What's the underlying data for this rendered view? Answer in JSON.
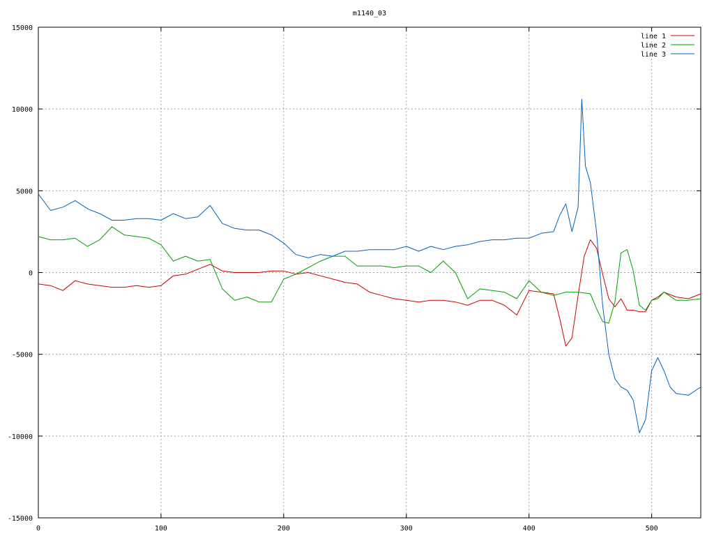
{
  "chart_data": {
    "type": "line",
    "title": "m1140_03",
    "xlabel": "",
    "ylabel": "",
    "xlim": [
      0,
      540
    ],
    "ylim": [
      -15000,
      15000
    ],
    "x_ticks": [
      0,
      100,
      200,
      300,
      400,
      500
    ],
    "y_ticks": [
      -15000,
      -10000,
      -5000,
      0,
      5000,
      10000,
      15000
    ],
    "grid": true,
    "legend_position": "top-right",
    "series": [
      {
        "name": "line 1",
        "color": "#cc0000",
        "x": [
          0,
          10,
          20,
          30,
          40,
          50,
          60,
          70,
          80,
          90,
          100,
          110,
          120,
          130,
          140,
          150,
          160,
          170,
          180,
          190,
          200,
          210,
          220,
          230,
          240,
          250,
          260,
          270,
          280,
          290,
          300,
          310,
          320,
          330,
          340,
          350,
          360,
          370,
          380,
          390,
          400,
          410,
          420,
          425,
          430,
          435,
          440,
          445,
          450,
          455,
          460,
          465,
          470,
          475,
          480,
          485,
          490,
          495,
          500,
          505,
          510,
          520,
          530,
          540
        ],
        "y": [
          -700,
          -800,
          -1100,
          -500,
          -700,
          -800,
          -900,
          -900,
          -800,
          -900,
          -800,
          -200,
          -100,
          200,
          500,
          100,
          0,
          0,
          0,
          100,
          100,
          -100,
          0,
          -200,
          -400,
          -600,
          -700,
          -1200,
          -1400,
          -1600,
          -1700,
          -1800,
          -1700,
          -1700,
          -1800,
          -2000,
          -1700,
          -1700,
          -2000,
          -2600,
          -1100,
          -1200,
          -1300,
          -2800,
          -4500,
          -4000,
          -1400,
          1000,
          2000,
          1500,
          -100,
          -1600,
          -2100,
          -1600,
          -2300,
          -2300,
          -2400,
          -2400,
          -1700,
          -1500,
          -1200,
          -1500,
          -1600,
          -1300
        ]
      },
      {
        "name": "line 2",
        "color": "#00a000",
        "x": [
          0,
          10,
          20,
          30,
          40,
          50,
          60,
          70,
          80,
          90,
          100,
          110,
          120,
          130,
          140,
          150,
          160,
          170,
          180,
          190,
          200,
          210,
          220,
          230,
          240,
          250,
          260,
          270,
          280,
          290,
          300,
          310,
          320,
          330,
          340,
          350,
          360,
          370,
          380,
          390,
          400,
          410,
          420,
          430,
          440,
          450,
          455,
          460,
          465,
          470,
          475,
          480,
          485,
          490,
          495,
          500,
          505,
          510,
          520,
          530,
          540
        ],
        "y": [
          2200,
          2000,
          2000,
          2100,
          1600,
          2000,
          2800,
          2300,
          2200,
          2100,
          1700,
          700,
          1000,
          700,
          800,
          -1000,
          -1700,
          -1500,
          -1800,
          -1800,
          -400,
          -100,
          300,
          700,
          1000,
          1000,
          400,
          400,
          400,
          300,
          400,
          400,
          0,
          700,
          0,
          -1600,
          -1000,
          -1100,
          -1200,
          -1600,
          -500,
          -1200,
          -1400,
          -1200,
          -1200,
          -1300,
          -2200,
          -3000,
          -3100,
          -1800,
          1200,
          1400,
          100,
          -2000,
          -2300,
          -1700,
          -1600,
          -1200,
          -1700,
          -1700,
          -1600
        ]
      },
      {
        "name": "line 3",
        "color": "#0060c0",
        "x": [
          0,
          10,
          20,
          30,
          40,
          50,
          60,
          70,
          80,
          90,
          100,
          110,
          120,
          130,
          140,
          150,
          160,
          170,
          180,
          190,
          200,
          210,
          220,
          230,
          240,
          250,
          260,
          270,
          280,
          290,
          300,
          310,
          320,
          330,
          340,
          350,
          360,
          370,
          380,
          390,
          400,
          410,
          420,
          425,
          430,
          435,
          440,
          443,
          446,
          450,
          455,
          460,
          465,
          470,
          475,
          480,
          485,
          490,
          495,
          500,
          505,
          510,
          515,
          520,
          530,
          540
        ],
        "y": [
          4800,
          3800,
          4000,
          4400,
          3900,
          3600,
          3200,
          3200,
          3300,
          3300,
          3200,
          3600,
          3300,
          3400,
          4100,
          3000,
          2700,
          2600,
          2600,
          2300,
          1800,
          1100,
          900,
          1100,
          1000,
          1300,
          1300,
          1400,
          1400,
          1400,
          1600,
          1300,
          1600,
          1400,
          1600,
          1700,
          1900,
          2000,
          2000,
          2100,
          2100,
          2400,
          2500,
          3500,
          4200,
          2500,
          4000,
          10600,
          6500,
          5500,
          2500,
          -2000,
          -5000,
          -6500,
          -7000,
          -7200,
          -7800,
          -9800,
          -9000,
          -6000,
          -5200,
          -6000,
          -7000,
          -7400,
          -7500,
          -7000
        ]
      }
    ]
  }
}
